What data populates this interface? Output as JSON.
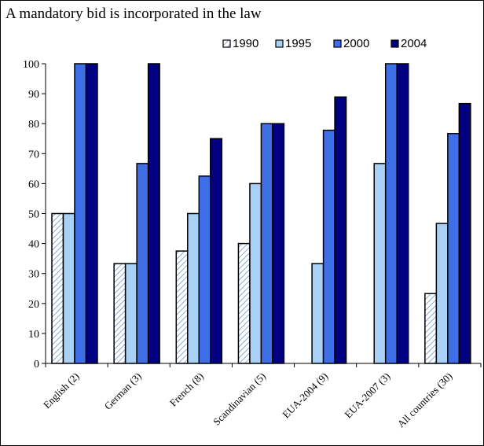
{
  "chart_data": {
    "type": "bar",
    "title": "A mandatory bid is incorporated in the law",
    "xlabel": "",
    "ylabel": "",
    "ylim": [
      0,
      100
    ],
    "yticks": [
      0,
      10,
      20,
      30,
      40,
      50,
      60,
      70,
      80,
      90,
      100
    ],
    "grid": false,
    "legend_position": "top-right",
    "categories": [
      "English (2)",
      "German (3)",
      "French (8)",
      "Scandinavian (5)",
      "EUA-2004 (9)",
      "EUA-2007 (3)",
      "All countries (30)"
    ],
    "series": [
      {
        "name": "1990",
        "values": [
          50,
          33.3,
          37.5,
          40,
          null,
          null,
          23.3
        ],
        "color": "#ffffff",
        "pattern": "hatch",
        "pattern_color": "#8aa9d6"
      },
      {
        "name": "1995",
        "values": [
          50,
          33.3,
          50,
          60,
          33.3,
          66.7,
          46.7
        ],
        "color": "#a9d1f5"
      },
      {
        "name": "2000",
        "values": [
          100,
          66.7,
          62.5,
          80,
          77.8,
          100,
          76.7
        ],
        "color": "#3e6fe6"
      },
      {
        "name": "2004",
        "values": [
          100,
          100,
          75,
          80,
          88.9,
          100,
          86.7
        ],
        "color": "#000080"
      }
    ]
  }
}
